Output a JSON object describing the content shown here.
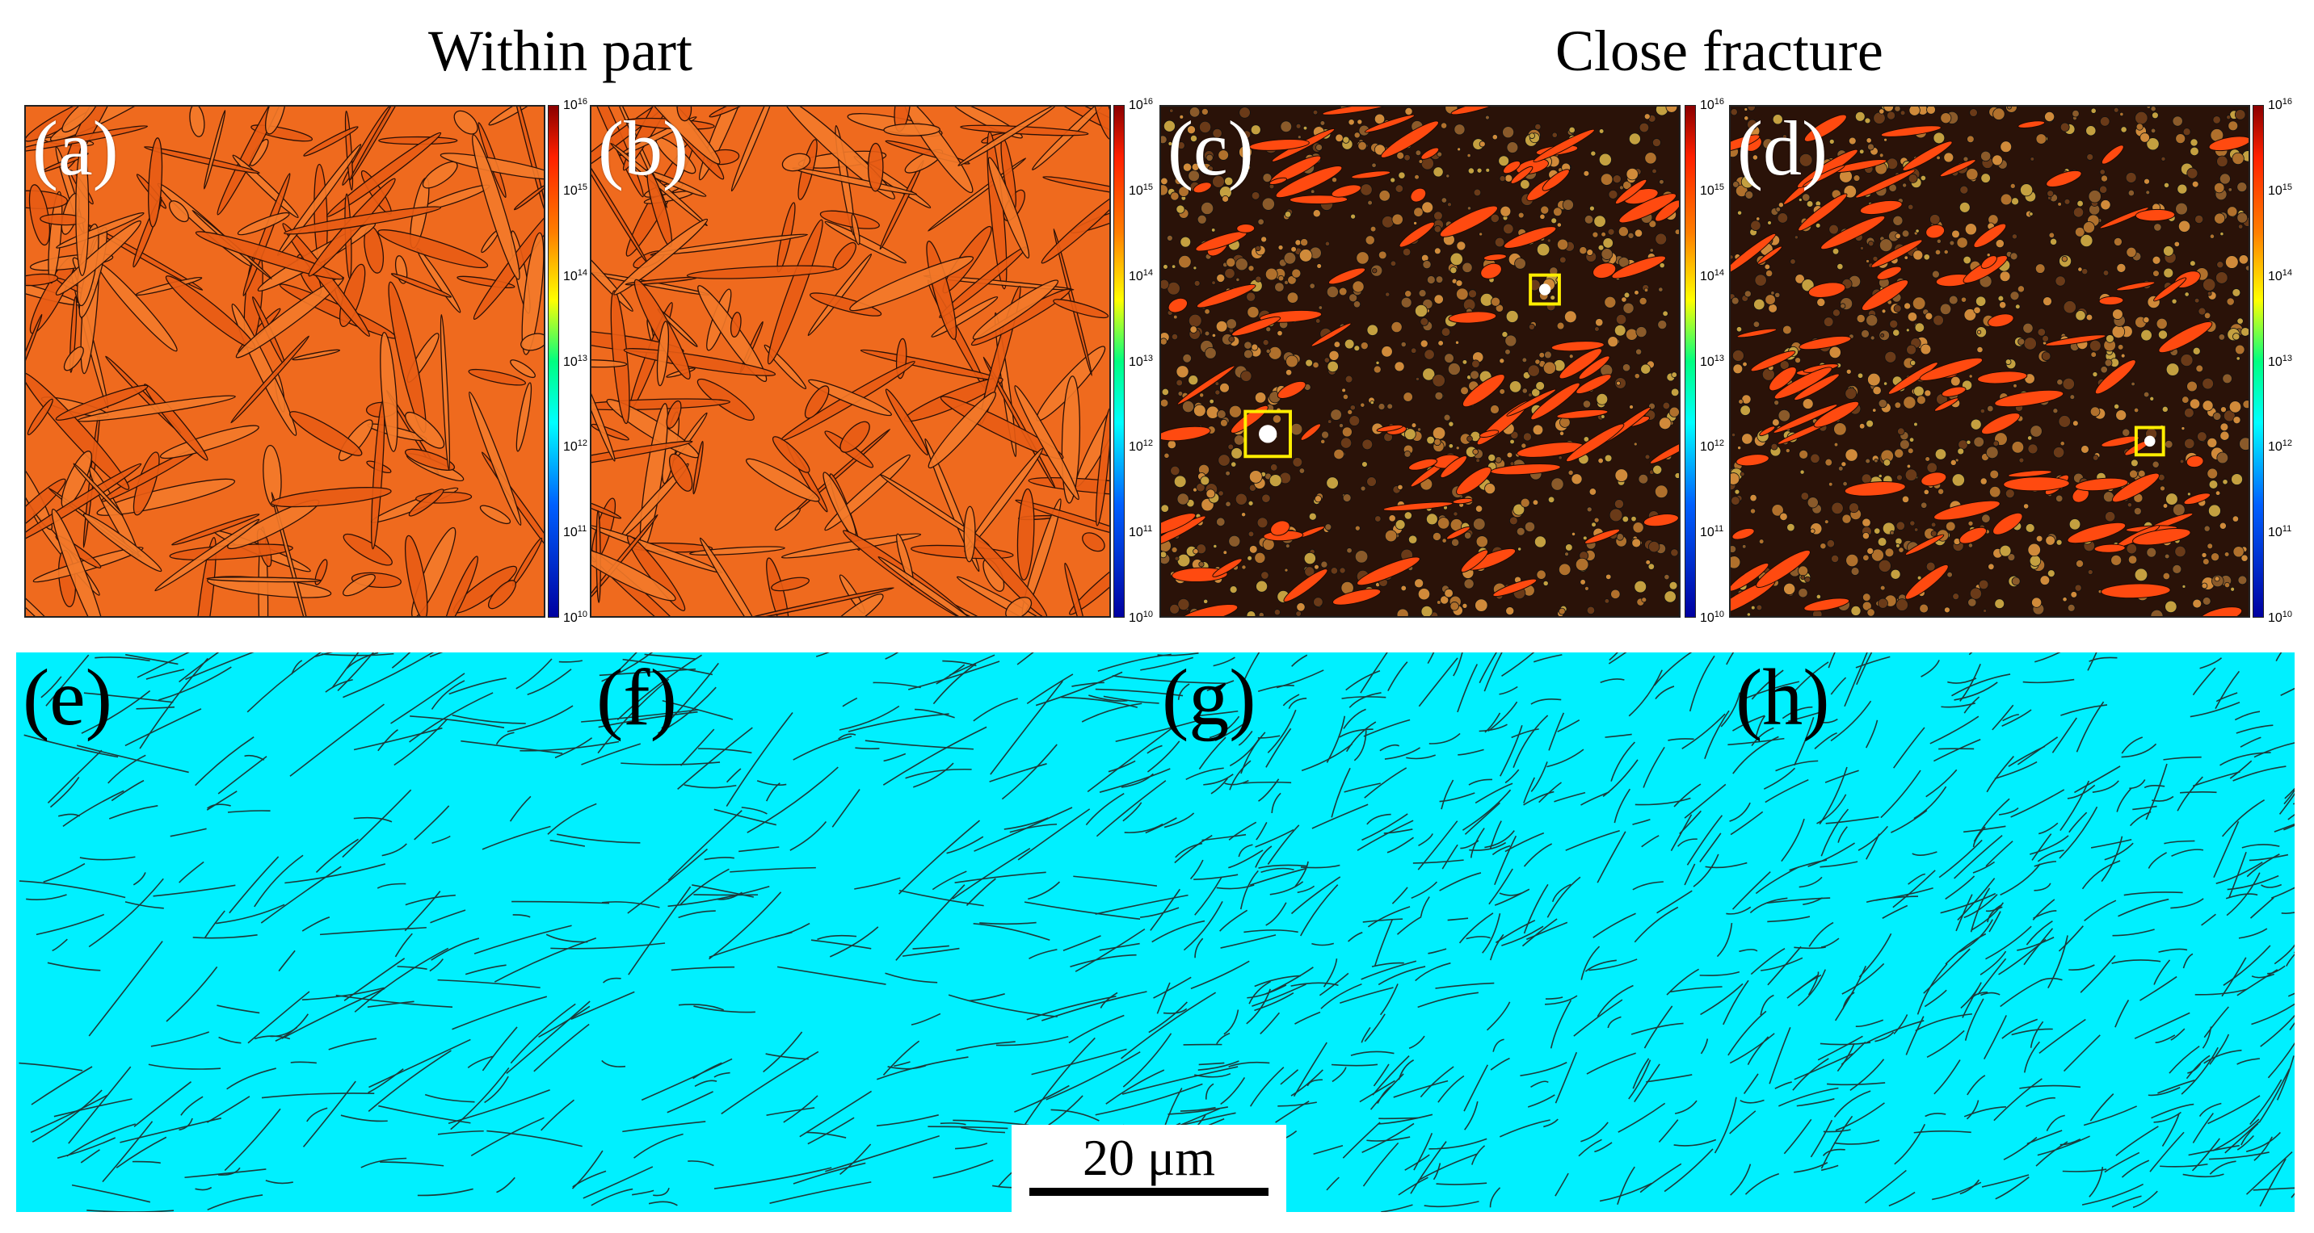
{
  "headings": {
    "left": "Within part",
    "right": "Close fracture"
  },
  "panels": [
    {
      "label": "(a)",
      "style": "orange"
    },
    {
      "label": "(b)",
      "style": "orange"
    },
    {
      "label": "(c)",
      "style": "dark"
    },
    {
      "label": "(d)",
      "style": "dark"
    }
  ],
  "colorbar": {
    "ticks": [
      {
        "base": "10",
        "exp": "16"
      },
      {
        "base": "10",
        "exp": "15"
      },
      {
        "base": "10",
        "exp": "14"
      },
      {
        "base": "10",
        "exp": "13"
      },
      {
        "base": "10",
        "exp": "12"
      },
      {
        "base": "10",
        "exp": "11"
      },
      {
        "base": "10",
        "exp": "10"
      }
    ]
  },
  "bottom_panels": [
    {
      "label": "(e)"
    },
    {
      "label": "(f)"
    },
    {
      "label": "(g)"
    },
    {
      "label": "(h)"
    }
  ],
  "scale_bar": {
    "text": "20 μm"
  },
  "colors": {
    "orange_bg": "#ef6a1e",
    "dark_bg": "#2a1208",
    "lath": "#ff4a10",
    "boundary_map_bg": "#00f0ff",
    "highlight_box": "#ffee00"
  }
}
